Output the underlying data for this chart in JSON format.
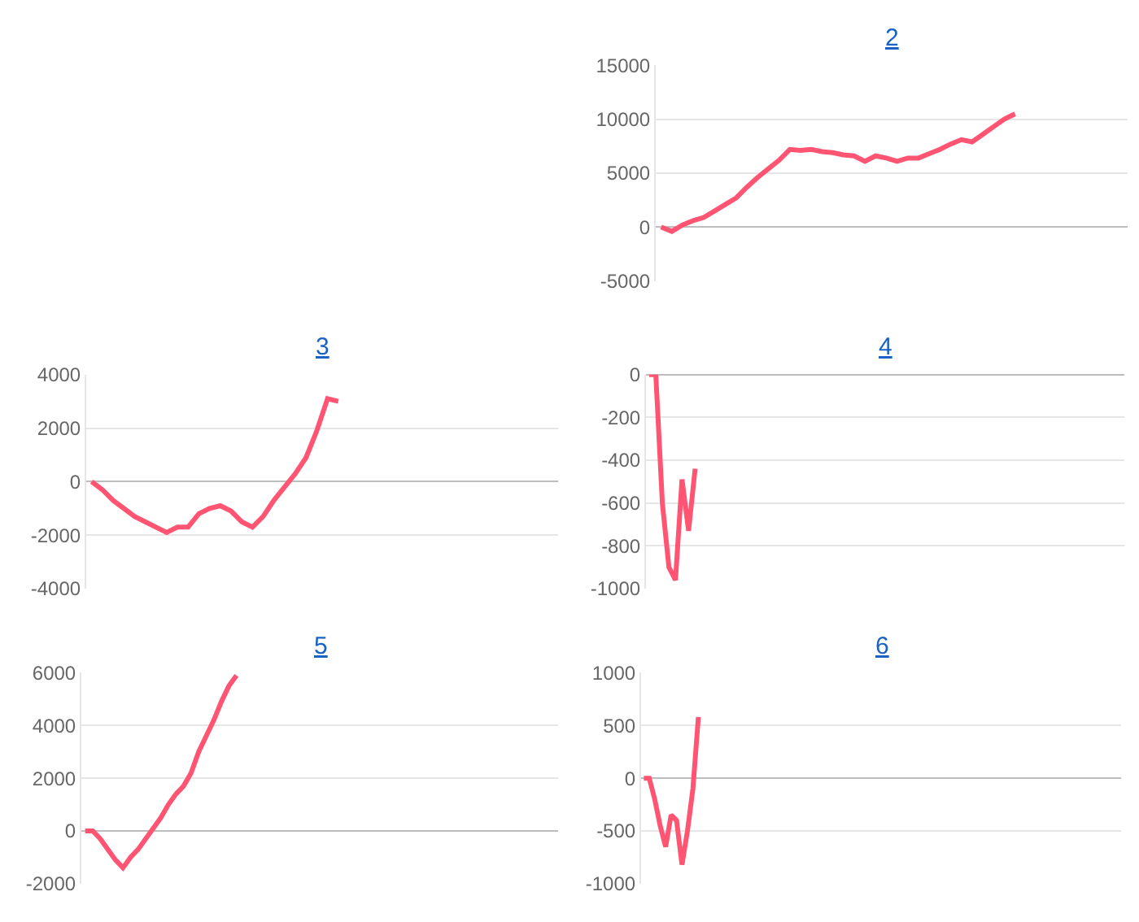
{
  "chart_data": [
    {
      "type": "line",
      "title": "2",
      "color": "#ff5573",
      "grid": "y",
      "tick_labels": "y",
      "ylim": [
        -5000,
        15000
      ],
      "yticks": [
        -5000,
        0,
        5000,
        10000,
        15000
      ],
      "categories": [
        null,
        null,
        null,
        null,
        null,
        null,
        null,
        null,
        null,
        null,
        null,
        null,
        null,
        null,
        null,
        null,
        null,
        null,
        null,
        null,
        null,
        null,
        null,
        null,
        null,
        null,
        null,
        null,
        null,
        null,
        null,
        null,
        null,
        null,
        null,
        null,
        null,
        null,
        null,
        null,
        null,
        null,
        null,
        null
      ],
      "values": [
        0,
        -400,
        200,
        600,
        900,
        1500,
        2100,
        2700,
        3700,
        4600,
        5400,
        6200,
        7200,
        7100,
        7200,
        7000,
        6900,
        6700,
        6600,
        6100,
        6600,
        6400,
        6100,
        6400,
        6400,
        6800,
        7200,
        7700,
        8100,
        7900,
        8600,
        9300,
        10000,
        10500,
        null,
        null,
        null,
        null,
        null,
        null,
        null,
        null,
        null,
        null
      ]
    },
    {
      "type": "line",
      "title": "3",
      "color": "#ff5573",
      "grid": "y",
      "tick_labels": "y",
      "ylim": [
        -4000,
        4000
      ],
      "yticks": [
        -4000,
        -2000,
        0,
        2000,
        4000
      ],
      "categories": [
        null,
        null,
        null,
        null,
        null,
        null,
        null,
        null,
        null,
        null,
        null,
        null,
        null,
        null,
        null,
        null,
        null,
        null,
        null,
        null,
        null,
        null,
        null,
        null,
        null,
        null,
        null,
        null,
        null,
        null,
        null,
        null,
        null,
        null,
        null,
        null,
        null,
        null,
        null,
        null,
        null,
        null,
        null,
        null
      ],
      "values": [
        0,
        -300,
        -700,
        -1000,
        -1300,
        -1500,
        -1700,
        -1900,
        -1700,
        -1700,
        -1200,
        -1000,
        -900,
        -1100,
        -1500,
        -1700,
        -1300,
        -700,
        -200,
        300,
        900,
        1900,
        3100,
        3000,
        null,
        null,
        null,
        null,
        null,
        null,
        null,
        null,
        null,
        null,
        null,
        null,
        null,
        null,
        null,
        null,
        null,
        null,
        null,
        null
      ]
    },
    {
      "type": "line",
      "title": "4",
      "color": "#ff5573",
      "grid": "y",
      "tick_labels": "y",
      "ylim": [
        -1000,
        0
      ],
      "yticks": [
        -1000,
        -800,
        -600,
        -400,
        -200,
        0
      ],
      "categories": [
        null,
        null,
        null,
        null,
        null,
        null,
        null,
        null,
        null,
        null,
        null,
        null,
        null,
        null,
        null,
        null,
        null,
        null,
        null,
        null,
        null,
        null,
        null,
        null,
        null,
        null,
        null,
        null,
        null,
        null,
        null,
        null,
        null,
        null,
        null,
        null,
        null,
        null,
        null,
        null,
        null,
        null,
        null,
        null,
        null,
        null,
        null,
        null,
        null,
        null,
        null,
        null,
        null,
        null,
        null,
        null,
        null,
        null,
        null,
        null,
        null,
        null,
        null,
        null,
        null,
        null,
        null,
        null,
        null,
        null,
        null,
        null,
        null
      ],
      "values": [
        0,
        0,
        -600,
        -900,
        -960,
        -490,
        -730,
        -440,
        null,
        null,
        null,
        null,
        null,
        null,
        null,
        null,
        null,
        null,
        null,
        null,
        null,
        null,
        null,
        null,
        null,
        null,
        null,
        null,
        null,
        null,
        null,
        null,
        null,
        null,
        null,
        null,
        null,
        null,
        null,
        null,
        null,
        null,
        null,
        null,
        null,
        null,
        null,
        null,
        null,
        null,
        null,
        null,
        null,
        null,
        null,
        null,
        null,
        null,
        null,
        null,
        null,
        null,
        null,
        null,
        null,
        null,
        null,
        null,
        null,
        null,
        null,
        null,
        null
      ]
    },
    {
      "type": "line",
      "title": "5",
      "color": "#ff5573",
      "grid": "y",
      "tick_labels": "y",
      "ylim": [
        -2000,
        6000
      ],
      "yticks": [
        -2000,
        0,
        2000,
        4000,
        6000
      ],
      "categories": [
        null,
        null,
        null,
        null,
        null,
        null,
        null,
        null,
        null,
        null,
        null,
        null,
        null,
        null,
        null,
        null,
        null,
        null,
        null,
        null,
        null,
        null,
        null,
        null,
        null,
        null,
        null,
        null,
        null,
        null,
        null,
        null,
        null,
        null,
        null,
        null,
        null,
        null,
        null,
        null,
        null,
        null,
        null,
        null,
        null,
        null,
        null,
        null,
        null,
        null,
        null,
        null,
        null,
        null,
        null,
        null,
        null,
        null,
        null,
        null,
        null,
        null,
        null
      ],
      "values": [
        0,
        0,
        -300,
        -700,
        -1100,
        -1400,
        -1000,
        -700,
        -300,
        100,
        500,
        1000,
        1400,
        1700,
        2200,
        3000,
        3600,
        4200,
        4900,
        5500,
        5900,
        null,
        null,
        null,
        null,
        null,
        null,
        null,
        null,
        null,
        null,
        null,
        null,
        null,
        null,
        null,
        null,
        null,
        null,
        null,
        null,
        null,
        null,
        null,
        null,
        null,
        null,
        null,
        null,
        null,
        null,
        null,
        null,
        null,
        null,
        null,
        null,
        null,
        null,
        null,
        null,
        null,
        null
      ]
    },
    {
      "type": "line",
      "title": "6",
      "color": "#ff5573",
      "grid": "y",
      "tick_labels": "y",
      "ylim": [
        -1000,
        1000
      ],
      "yticks": [
        -1000,
        -500,
        0,
        500,
        1000
      ],
      "categories": [
        null,
        null,
        null,
        null,
        null,
        null,
        null,
        null,
        null,
        null,
        null,
        null,
        null,
        null,
        null,
        null,
        null,
        null,
        null,
        null,
        null,
        null,
        null,
        null,
        null,
        null,
        null,
        null,
        null,
        null,
        null,
        null,
        null,
        null,
        null,
        null,
        null,
        null,
        null,
        null,
        null,
        null,
        null,
        null,
        null,
        null,
        null,
        null,
        null,
        null,
        null,
        null,
        null,
        null,
        null,
        null,
        null,
        null,
        null,
        null,
        null,
        null,
        null,
        null,
        null,
        null,
        null,
        null,
        null,
        null,
        null,
        null,
        null,
        null,
        null,
        null,
        null,
        null,
        null,
        null,
        null,
        null,
        null,
        null,
        null,
        null,
        null,
        null
      ],
      "values": [
        0,
        0,
        -200,
        -450,
        -650,
        -350,
        -400,
        -820,
        -500,
        -100,
        580,
        null,
        null,
        null,
        null,
        null,
        null,
        null,
        null,
        null,
        null,
        null,
        null,
        null,
        null,
        null,
        null,
        null,
        null,
        null,
        null,
        null,
        null,
        null,
        null,
        null,
        null,
        null,
        null,
        null,
        null,
        null,
        null,
        null,
        null,
        null,
        null,
        null,
        null,
        null,
        null,
        null,
        null,
        null,
        null,
        null,
        null,
        null,
        null,
        null,
        null,
        null,
        null,
        null,
        null,
        null,
        null,
        null,
        null,
        null,
        null,
        null,
        null,
        null,
        null,
        null,
        null,
        null,
        null,
        null,
        null,
        null,
        null,
        null,
        null,
        null,
        null,
        null
      ]
    }
  ]
}
